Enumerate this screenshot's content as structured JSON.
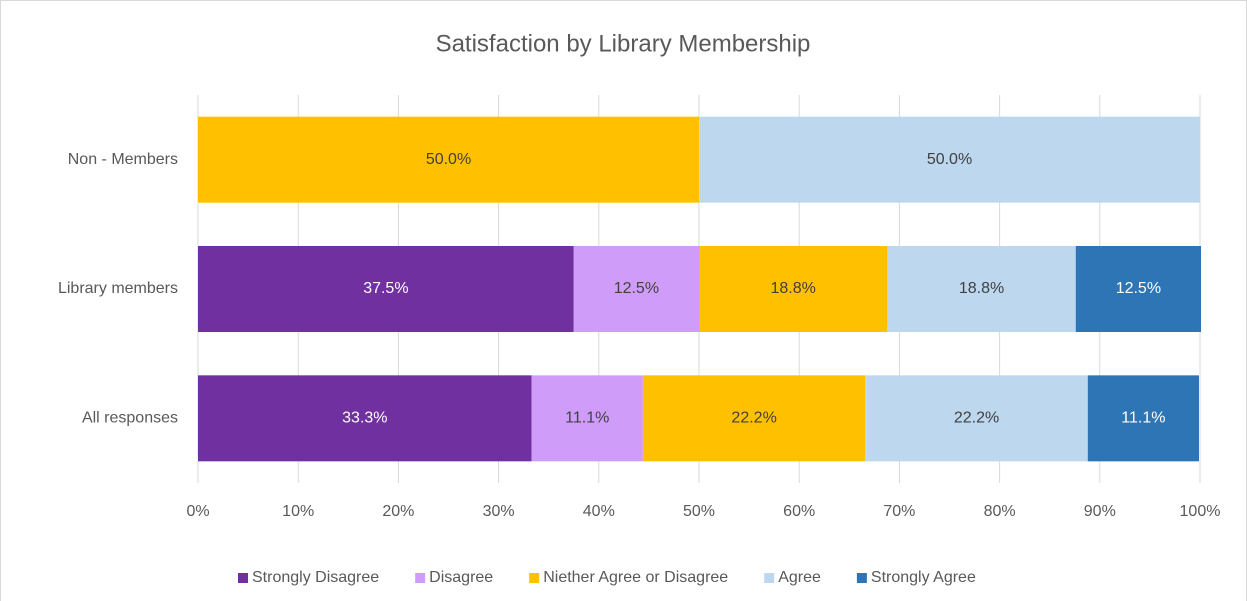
{
  "chart_data": {
    "type": "stacked_bar_horizontal",
    "title": "Satisfaction by Library Membership",
    "categories": [
      "All responses",
      "Library members",
      "Non - Members"
    ],
    "series": [
      {
        "name": "Strongly Disagree",
        "color": "#7030a0",
        "values": [
          33.3,
          37.5,
          0
        ],
        "value_labels": [
          "33.3%",
          "37.5%",
          null
        ]
      },
      {
        "name": "Disagree",
        "color": "#d09cfa",
        "values": [
          11.1,
          12.5,
          0
        ],
        "value_labels": [
          "11.1%",
          "12.5%",
          null
        ]
      },
      {
        "name": "Niether Agree or Disagree",
        "color": "#ffc000",
        "values": [
          22.2,
          18.8,
          50.0
        ],
        "value_labels": [
          "22.2%",
          "18.8%",
          "50.0%"
        ]
      },
      {
        "name": "Agree",
        "color": "#bdd7ee",
        "values": [
          22.2,
          18.8,
          50.0
        ],
        "value_labels": [
          "22.2%",
          "18.8%",
          "50.0%"
        ]
      },
      {
        "name": "Strongly Agree",
        "color": "#2e75b6",
        "values": [
          11.1,
          12.5,
          0
        ],
        "value_labels": [
          "11.1%",
          "12.5%",
          null
        ]
      }
    ],
    "xlim": [
      0,
      100
    ],
    "xticks": [
      {
        "value": 0,
        "label": "0%"
      },
      {
        "value": 10,
        "label": "10%"
      },
      {
        "value": 20,
        "label": "20%"
      },
      {
        "value": 30,
        "label": "30%"
      },
      {
        "value": 40,
        "label": "40%"
      },
      {
        "value": 50,
        "label": "50%"
      },
      {
        "value": 60,
        "label": "60%"
      },
      {
        "value": 70,
        "label": "70%"
      },
      {
        "value": 80,
        "label": "80%"
      },
      {
        "value": 90,
        "label": "90%"
      },
      {
        "value": 100,
        "label": "100%"
      }
    ],
    "grid": true,
    "legend": "bottom"
  }
}
